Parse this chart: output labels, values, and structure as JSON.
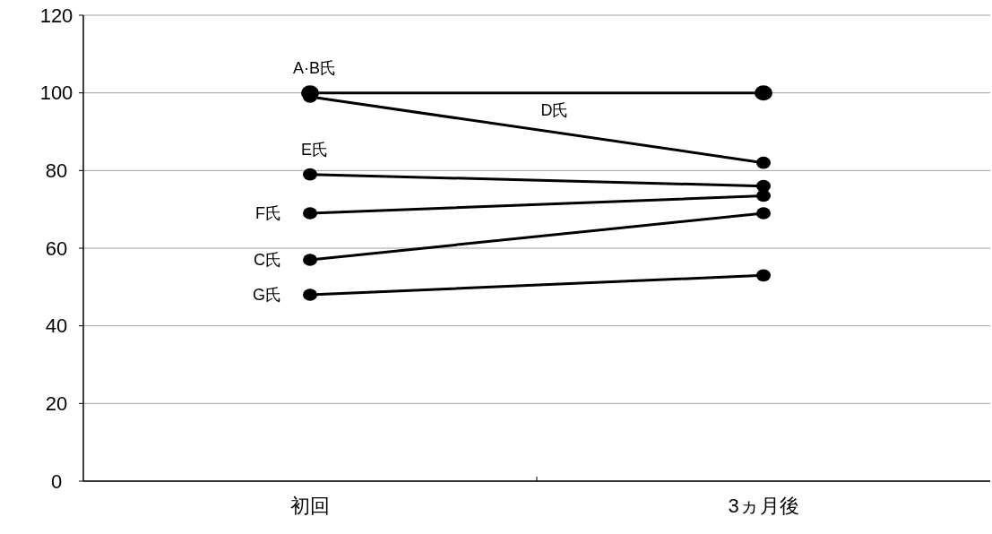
{
  "chart_data": {
    "type": "line",
    "categories": [
      "初回",
      "3ヵ月後"
    ],
    "series": [
      {
        "name": "A·B氏",
        "color": "#000000",
        "values": [
          100,
          100
        ]
      },
      {
        "name": "D氏",
        "color": "#000000",
        "values": [
          99,
          82
        ]
      },
      {
        "name": "E氏",
        "color": "#000000",
        "values": [
          79,
          76
        ]
      },
      {
        "name": "F氏",
        "color": "#000000",
        "values": [
          69,
          73.5
        ]
      },
      {
        "name": "C氏",
        "color": "#000000",
        "values": [
          57,
          69
        ]
      },
      {
        "name": "G氏",
        "color": "#000000",
        "values": [
          48,
          53
        ]
      }
    ],
    "ylim": [
      0,
      120
    ],
    "yticks": [
      0,
      20,
      40,
      60,
      80,
      100,
      120
    ],
    "grid": "y",
    "marker": "circle",
    "line_style": "solid"
  }
}
